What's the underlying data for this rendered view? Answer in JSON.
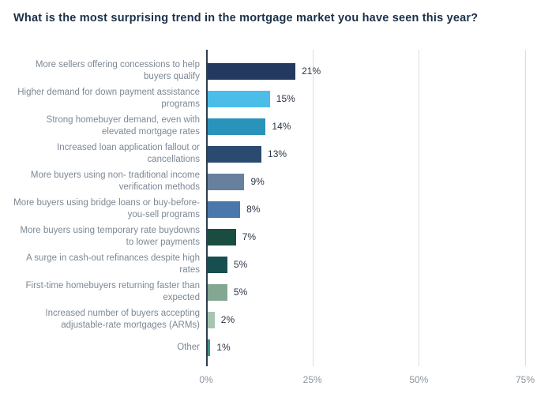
{
  "title": "What is the most surprising trend in the mortgage market you have seen this year?",
  "chart_data": {
    "type": "bar",
    "orientation": "horizontal",
    "title": "What is the most surprising trend in the mortgage market you have seen this year?",
    "categories": [
      "More sellers offering concessions to help buyers qualify",
      "Higher demand for down payment assistance programs",
      "Strong homebuyer demand, even with elevated mortgage rates",
      "Increased loan application fallout or cancellations",
      "More buyers using non- traditional income verification methods",
      "More buyers using bridge loans or buy-before-you-sell programs",
      "More buyers using temporary rate buydowns to lower payments",
      "A surge in cash-out refinances despite high rates",
      "First-time homebuyers returning faster than expected",
      "Increased number of buyers accepting adjustable-rate mortgages (ARMs)",
      "Other"
    ],
    "values": [
      21,
      15,
      14,
      13,
      9,
      8,
      7,
      5,
      5,
      2,
      1
    ],
    "value_labels": [
      "21%",
      "15%",
      "14%",
      "13%",
      "9%",
      "8%",
      "7%",
      "5%",
      "5%",
      "2%",
      "1%"
    ],
    "bar_colors": [
      "#24395f",
      "#4bbde8",
      "#2a93bb",
      "#2b4a70",
      "#66809e",
      "#4a78ab",
      "#1a4c42",
      "#174f50",
      "#83a793",
      "#a5c6b0",
      "#419186"
    ],
    "xlim": [
      0,
      75
    ],
    "x_ticks": [
      {
        "label": "0%",
        "value": 0
      },
      {
        "label": "25%",
        "value": 25
      },
      {
        "label": "50%",
        "value": 50
      },
      {
        "label": "75%",
        "value": 75
      }
    ],
    "grid": "vertical",
    "legend": "none",
    "xlabel": "",
    "ylabel": ""
  },
  "colors": {
    "title_text": "#1c3049",
    "category_text": "#7d8894",
    "value_text": "#2c3644",
    "tick_text": "#8b949d",
    "gridline": "#d9dde1",
    "axis_line": "#2f3e4d",
    "background": "#ffffff"
  }
}
